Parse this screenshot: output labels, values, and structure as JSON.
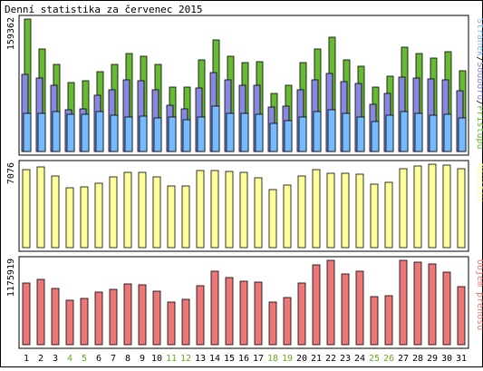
{
  "chart_data": {
    "title": "Denní statistika za červenec 2015",
    "days": [
      "1",
      "2",
      "3",
      "4",
      "5",
      "6",
      "7",
      "8",
      "9",
      "10",
      "11",
      "12",
      "13",
      "14",
      "15",
      "16",
      "17",
      "18",
      "19",
      "20",
      "21",
      "22",
      "23",
      "24",
      "25",
      "26",
      "27",
      "28",
      "29",
      "30",
      "31"
    ],
    "weekend_days": [
      "4",
      "5",
      "11",
      "12",
      "18",
      "19",
      "25",
      "26"
    ],
    "colors": {
      "pristupy": "#66bb33",
      "soubory": "#8888dd",
      "stranky": "#77bbff",
      "navstevy": "#ffff99",
      "prenosy": "#ee7777",
      "weekday_label": "#000000",
      "weekend_label": "#66aa22"
    },
    "panels": [
      {
        "type": "bar",
        "max_label": "159362",
        "ylim": [
          0,
          159362
        ],
        "legend": [
          "Stránek",
          "Souborů",
          "Přístupů"
        ],
        "legend_separator": "/",
        "series": [
          {
            "name": "Přístupů",
            "values": [
              159362,
              123000,
              105000,
              83000,
              85000,
              96000,
              105000,
              118000,
              115000,
              105000,
              78000,
              78000,
              110000,
              134000,
              115000,
              107000,
              108000,
              70000,
              80000,
              107000,
              123000,
              137000,
              110000,
              103000,
              77000,
              91000,
              126000,
              118000,
              112000,
              120000,
              97000
            ]
          },
          {
            "name": "Souborů",
            "values": [
              93000,
              88000,
              80000,
              50000,
              51000,
              68000,
              74000,
              86000,
              85000,
              74000,
              56000,
              51000,
              76000,
              95000,
              86000,
              80000,
              80000,
              53000,
              55000,
              74000,
              86000,
              94000,
              84000,
              82000,
              57000,
              70000,
              90000,
              88000,
              87000,
              86000,
              73000
            ]
          },
          {
            "name": "Stránek",
            "values": [
              46000,
              46000,
              48000,
              45000,
              45000,
              48000,
              44000,
              42000,
              43000,
              40000,
              41000,
              38000,
              42000,
              55000,
              46000,
              46000,
              45000,
              34000,
              37000,
              42000,
              48000,
              50000,
              46000,
              42000,
              36000,
              44000,
              48000,
              46000,
              44000,
              45000,
              40000
            ]
          }
        ]
      },
      {
        "type": "bar",
        "max_label": "7076",
        "ylim": [
          0,
          7076
        ],
        "legend": [
          "Návštěv"
        ],
        "series": [
          {
            "name": "Návštěv",
            "values": [
              6650,
              6830,
              6100,
              5050,
              5150,
              5450,
              6000,
              6350,
              6400,
              6000,
              5200,
              5200,
              6500,
              6550,
              6450,
              6350,
              5950,
              4900,
              5300,
              6100,
              6600,
              6300,
              6300,
              6250,
              5350,
              5500,
              6700,
              6950,
              7076,
              6970,
              6700
            ]
          }
        ]
      },
      {
        "type": "bar",
        "max_label": "1175919",
        "ylim": [
          0,
          1175919
        ],
        "legend": [
          "Objem přenosu"
        ],
        "series": [
          {
            "name": "Objem přenosu",
            "values": [
              860000,
              915000,
              790000,
              615000,
              650000,
              730000,
              770000,
              850000,
              835000,
              740000,
              590000,
              635000,
              825000,
              1020000,
              935000,
              880000,
              870000,
              595000,
              655000,
              865000,
              1110000,
              1175919,
              980000,
              1020000,
              665000,
              680000,
              1170000,
              1155000,
              1130000,
              1010000,
              810000
            ]
          }
        ]
      }
    ]
  }
}
